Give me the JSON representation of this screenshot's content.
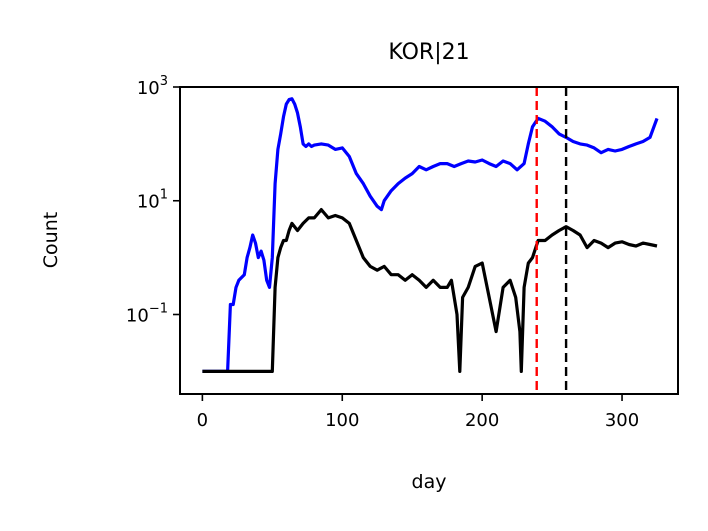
{
  "chart_data": {
    "type": "line",
    "title": "KOR|21",
    "xlabel": "day",
    "ylabel": "Count",
    "xlim": [
      -16,
      340
    ],
    "ylim": [
      0.004,
      1000
    ],
    "yscale": "log",
    "grid": false,
    "x_ticks": [
      {
        "value": 0,
        "label": "0"
      },
      {
        "value": 100,
        "label": "100"
      },
      {
        "value": 200,
        "label": "200"
      },
      {
        "value": 300,
        "label": "300"
      }
    ],
    "y_ticks": [
      {
        "value": 1000,
        "base": "10",
        "exp": "3"
      },
      {
        "value": 10,
        "base": "10",
        "exp": "1"
      },
      {
        "value": 0.1,
        "base": "10",
        "exp": "−1"
      }
    ],
    "series": [
      {
        "color": "#0000ff",
        "x": [
          0,
          18,
          20,
          22,
          24,
          26,
          30,
          32,
          34,
          36,
          38,
          40,
          42,
          44,
          46,
          48,
          50,
          52,
          54,
          56,
          58,
          60,
          62,
          64,
          66,
          68,
          70,
          72,
          74,
          76,
          78,
          80,
          85,
          90,
          95,
          100,
          105,
          110,
          115,
          120,
          125,
          128,
          130,
          135,
          140,
          145,
          150,
          155,
          160,
          165,
          170,
          175,
          180,
          185,
          190,
          195,
          200,
          205,
          210,
          215,
          220,
          225,
          230,
          233,
          236,
          240,
          245,
          250,
          255,
          260,
          265,
          270,
          275,
          280,
          285,
          290,
          295,
          300,
          305,
          310,
          315,
          320,
          325
        ],
        "y": [
          0.01,
          0.01,
          0.15,
          0.15,
          0.3,
          0.4,
          0.5,
          1.0,
          1.5,
          2.5,
          1.8,
          1.0,
          1.3,
          0.9,
          0.4,
          0.3,
          1.0,
          20,
          80,
          150,
          300,
          500,
          600,
          620,
          500,
          350,
          200,
          100,
          90,
          100,
          90,
          95,
          100,
          95,
          80,
          85,
          60,
          30,
          20,
          12,
          8,
          7,
          10,
          15,
          20,
          25,
          30,
          40,
          35,
          40,
          45,
          45,
          40,
          45,
          50,
          48,
          52,
          45,
          40,
          50,
          45,
          35,
          45,
          100,
          200,
          280,
          250,
          200,
          150,
          130,
          110,
          100,
          95,
          85,
          70,
          80,
          75,
          80,
          90,
          100,
          110,
          130,
          280
        ]
      },
      {
        "color": "#000000",
        "x": [
          0,
          48,
          50,
          52,
          54,
          56,
          58,
          60,
          62,
          64,
          68,
          72,
          76,
          80,
          85,
          90,
          95,
          100,
          105,
          110,
          115,
          120,
          125,
          130,
          135,
          140,
          145,
          150,
          155,
          160,
          165,
          170,
          175,
          178,
          180,
          182,
          184,
          186,
          190,
          195,
          200,
          205,
          210,
          215,
          220,
          224,
          227,
          228,
          230,
          233,
          236,
          240,
          245,
          250,
          255,
          260,
          265,
          270,
          275,
          280,
          285,
          290,
          295,
          300,
          305,
          310,
          315,
          320,
          325
        ],
        "y": [
          0.01,
          0.01,
          0.01,
          0.3,
          1.0,
          1.5,
          2.0,
          2.0,
          3.0,
          4.0,
          3.0,
          4.0,
          5.0,
          5.0,
          7.0,
          5.0,
          5.5,
          5.0,
          4.0,
          2.0,
          1.0,
          0.7,
          0.6,
          0.7,
          0.5,
          0.5,
          0.4,
          0.5,
          0.4,
          0.3,
          0.4,
          0.3,
          0.3,
          0.4,
          0.2,
          0.1,
          0.01,
          0.2,
          0.3,
          0.7,
          0.8,
          0.2,
          0.05,
          0.3,
          0.4,
          0.2,
          0.05,
          0.01,
          0.3,
          0.8,
          1.0,
          2.0,
          2.0,
          2.5,
          3.0,
          3.5,
          3.0,
          2.5,
          1.5,
          2.0,
          1.8,
          1.5,
          1.8,
          1.9,
          1.7,
          1.6,
          1.8,
          1.7,
          1.6
        ]
      }
    ],
    "vlines": [
      {
        "x": 239,
        "color": "#ff0000",
        "style": "dashed"
      },
      {
        "x": 260,
        "color": "#000000",
        "style": "dashed"
      }
    ]
  }
}
